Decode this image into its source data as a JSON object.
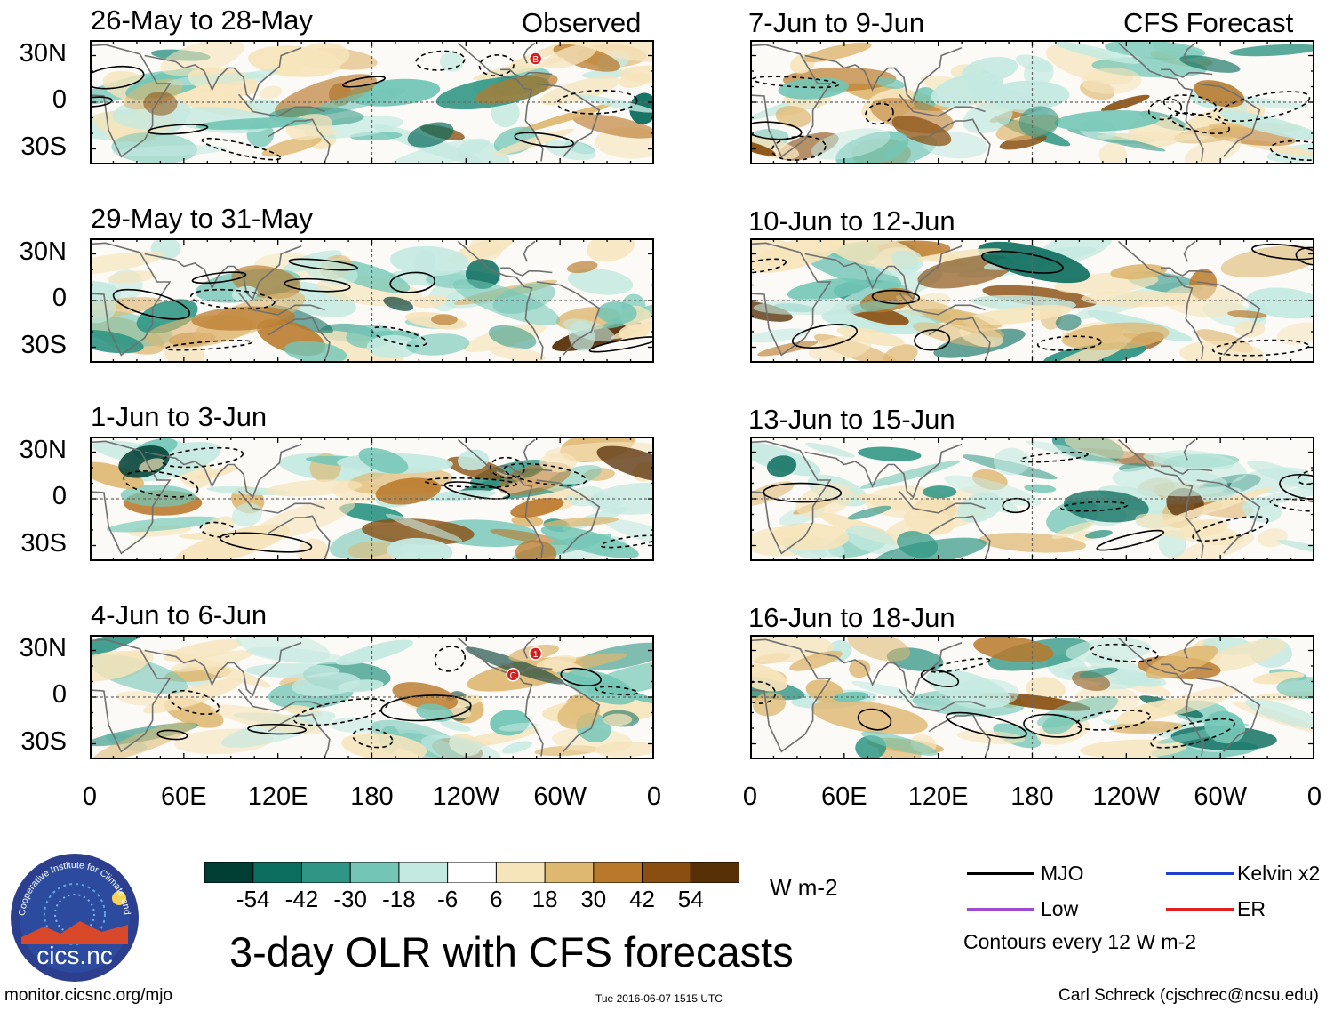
{
  "column_titles": {
    "left": "Observed",
    "right": "CFS Forecast"
  },
  "chart_data": {
    "type": "heatmap",
    "title": "3-day OLR with CFS forecasts",
    "variable": "OLR anomaly",
    "units": "W m-2",
    "x_ticks": [
      "0",
      "60E",
      "120E",
      "180",
      "120W",
      "60W",
      "0"
    ],
    "y_ticks": [
      "30N",
      "0",
      "30S"
    ],
    "panels": [
      {
        "id": "obs-1",
        "title": "26-May to 28-May",
        "group": "Observed",
        "markers": [
          "B"
        ]
      },
      {
        "id": "obs-2",
        "title": "29-May to 31-May",
        "group": "Observed",
        "markers": []
      },
      {
        "id": "obs-3",
        "title": "1-Jun to 3-Jun",
        "group": "Observed",
        "markers": []
      },
      {
        "id": "obs-4",
        "title": "4-Jun to 6-Jun",
        "group": "Observed",
        "markers": [
          "1",
          "C"
        ]
      },
      {
        "id": "fc-1",
        "title": "7-Jun to 9-Jun",
        "group": "CFS Forecast",
        "markers": []
      },
      {
        "id": "fc-2",
        "title": "10-Jun to 12-Jun",
        "group": "CFS Forecast",
        "markers": []
      },
      {
        "id": "fc-3",
        "title": "13-Jun to 15-Jun",
        "group": "CFS Forecast",
        "markers": []
      },
      {
        "id": "fc-4",
        "title": "16-Jun to 18-Jun",
        "group": "CFS Forecast",
        "markers": []
      }
    ],
    "colorbar": {
      "ticks": [
        "-54",
        "-42",
        "-30",
        "-18",
        "-6",
        "6",
        "18",
        "30",
        "42",
        "54"
      ],
      "colors": [
        "#003d32",
        "#0b6d5e",
        "#2f9584",
        "#73c6b6",
        "#c4e9e1",
        "#ffffff",
        "#f6e4bb",
        "#deb771",
        "#b9782a",
        "#8a4f10",
        "#583008"
      ],
      "units_label": "W m-2"
    },
    "legend": [
      {
        "label": "MJO",
        "color": "#000000"
      },
      {
        "label": "Kelvin x2",
        "color": "#1f3fcf"
      },
      {
        "label": "Low",
        "color": "#a04ad0"
      },
      {
        "label": "ER",
        "color": "#e02020"
      }
    ],
    "contour_note": "Contours every 12 W m-2"
  },
  "footer": {
    "logo_text": "cics.nc",
    "logo_ring_text": "Cooperative Institute for Climate and Satellites",
    "website": "monitor.cicsnc.org/mjo",
    "timestamp": "Tue 2016-06-07 1515 UTC",
    "author": "Carl Schreck (cjschrec@ncsu.edu)"
  }
}
